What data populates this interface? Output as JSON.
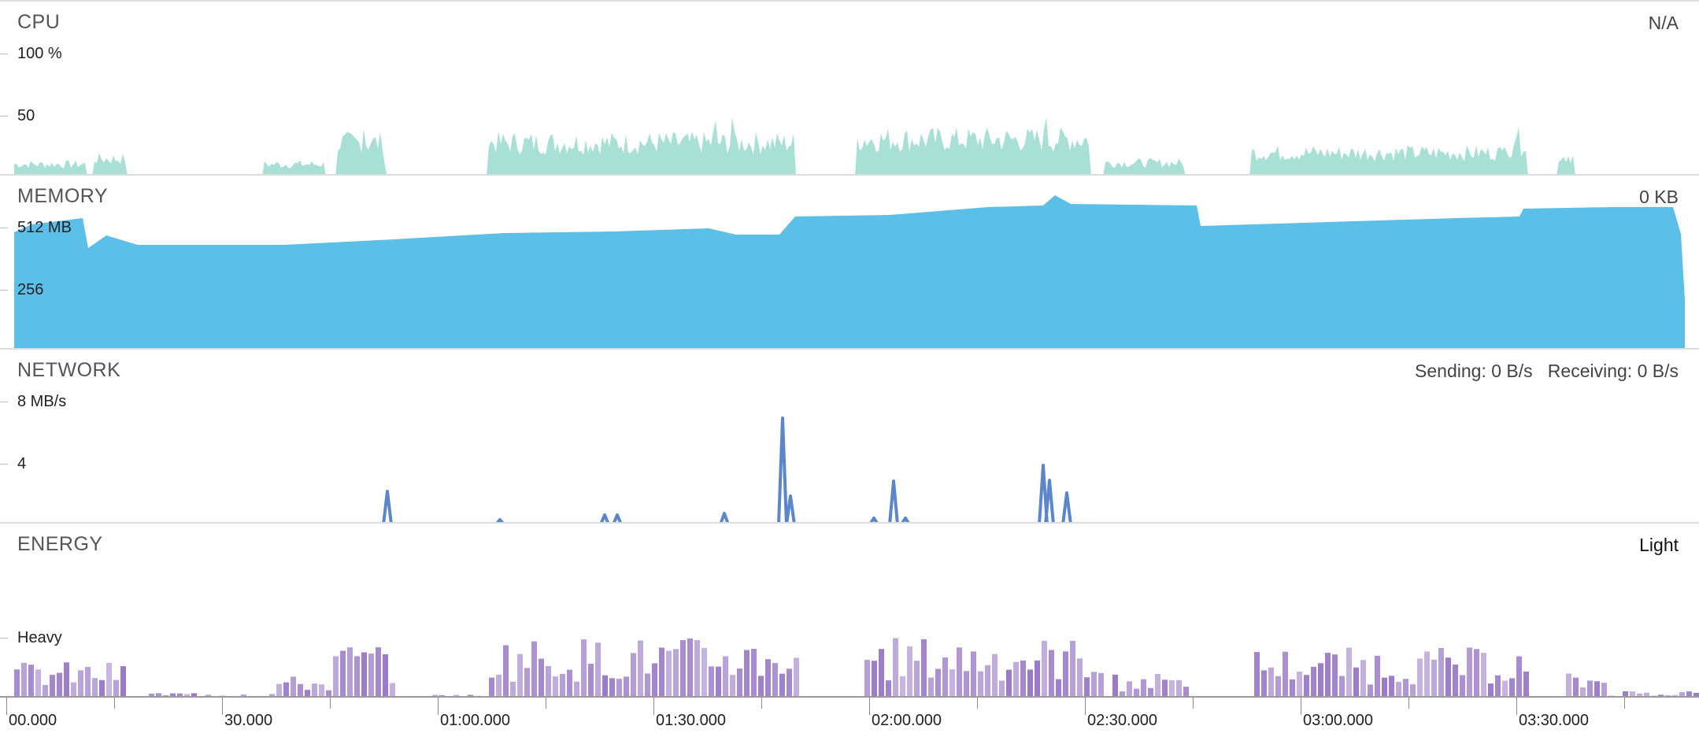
{
  "cpu": {
    "title": "CPU",
    "status": "N/A",
    "scale_max": "100 %",
    "scale_mid": "50",
    "color": "#a8e0d6"
  },
  "memory": {
    "title": "MEMORY",
    "status": "0 KB",
    "scale_max": "512 MB",
    "scale_mid": "256",
    "color": "#5bbfe8"
  },
  "network": {
    "title": "NETWORK",
    "status": "Sending: 0 B/s   Receiving: 0 B/s",
    "scale_max": "8 MB/s",
    "scale_mid": "4",
    "color": "#5b86cc"
  },
  "energy": {
    "title": "ENERGY",
    "status": "Light",
    "scale_mid": "Heavy",
    "color": "#9a78c8"
  },
  "timeline": {
    "labels": [
      "00.000",
      "30.000",
      "01:00.000",
      "01:30.000",
      "02:00.000",
      "02:30.000",
      "03:00.000",
      "03:30.000"
    ]
  }
}
